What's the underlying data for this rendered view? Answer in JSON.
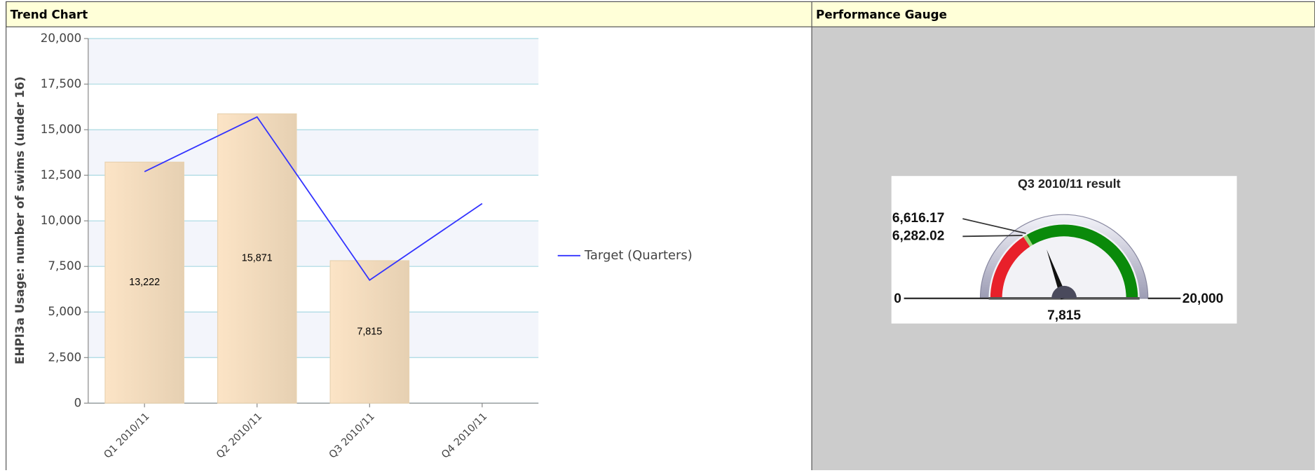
{
  "panels": {
    "trend": {
      "header": "Trend Chart"
    },
    "gauge": {
      "header": "Performance Gauge"
    }
  },
  "chart_data": {
    "type": "bar",
    "y_label": "EHPI3a Usage: number of swims (under 16)",
    "categories": [
      "Q1 2010/11",
      "Q2 2010/11",
      "Q3 2010/11",
      "Q4 2010/11"
    ],
    "series": [
      {
        "type": "bar",
        "color": "#f5dcbc",
        "values": [
          13222,
          15871,
          7815,
          null
        ],
        "value_labels": [
          "13,222",
          "15,871",
          "7,815",
          null
        ]
      },
      {
        "type": "line",
        "name": "Target (Quarters)",
        "color": "#3333ff",
        "values": [
          12700,
          15700,
          6750,
          10950
        ]
      }
    ],
    "ylim": [
      0,
      20000
    ],
    "yticks": [
      0,
      {
        "value": 2500,
        "label": "2,500"
      },
      {
        "value": 5000,
        "label": "5,000"
      },
      {
        "value": 7500,
        "label": "7,500"
      },
      {
        "value": 10000,
        "label": "10,000"
      },
      {
        "value": 12500,
        "label": "12,500"
      },
      {
        "value": 15000,
        "label": "15,000"
      },
      {
        "value": 17500,
        "label": "17,500"
      },
      {
        "value": 20000,
        "label": "20,000"
      }
    ],
    "grid": true,
    "legend": "right"
  },
  "gauge": {
    "title": "Q3 2010/11 result",
    "scale": [
      0,
      {
        "value": 20000,
        "label": "20,000"
      }
    ],
    "thresholds": [
      {
        "value": 6282.02,
        "label": "6,282.02"
      },
      {
        "value": 6616.17,
        "label": "6,616.17"
      }
    ],
    "band_colors": [
      "#e8202a",
      "#9fd77d",
      "#0a8a0a"
    ],
    "value": {
      "value": 7815,
      "label": "7,815"
    }
  }
}
